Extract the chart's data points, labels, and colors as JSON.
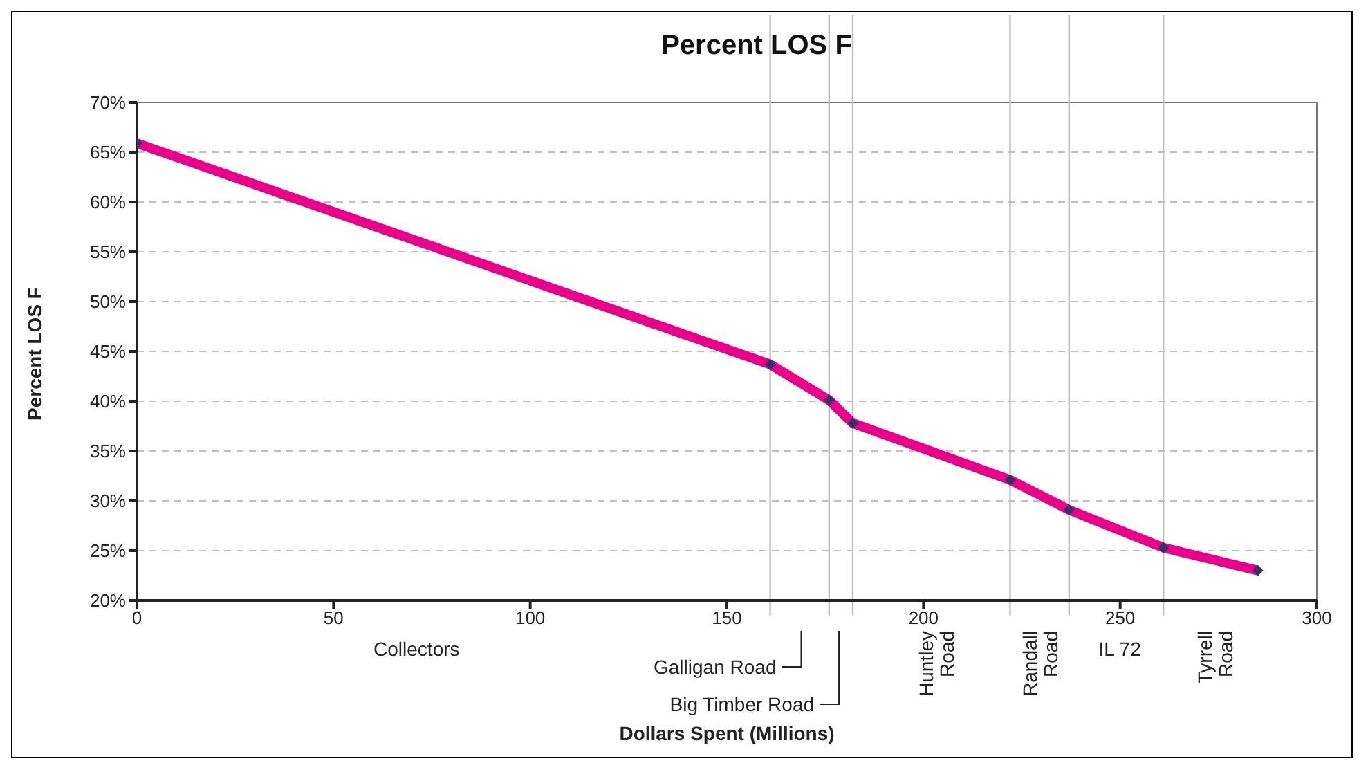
{
  "chart_data": {
    "type": "line",
    "title": "Percent LOS F",
    "xlabel": "Dollars Spent (Millions)",
    "ylabel": "Percent LOS F",
    "x": [
      0,
      161,
      176,
      182,
      222,
      237,
      261,
      285
    ],
    "series": [
      {
        "color": "#e8008a",
        "values": [
          65.9,
          43.7,
          40.1,
          37.8,
          32.1,
          29.1,
          25.3,
          23.0
        ]
      }
    ],
    "marker": "diamond",
    "line_style": "solid",
    "grid": "y",
    "xlim": [
      0,
      300
    ],
    "xticks": [
      0,
      50,
      100,
      150,
      200,
      250,
      300
    ],
    "ylim": [
      20,
      70
    ],
    "yticks": [
      {
        "value": 20,
        "label": "20%"
      },
      {
        "value": 25,
        "label": "25%"
      },
      {
        "value": 30,
        "label": "30%"
      },
      {
        "value": 35,
        "label": "35%"
      },
      {
        "value": 40,
        "label": "40%"
      },
      {
        "value": 45,
        "label": "45%"
      },
      {
        "value": 50,
        "label": "50%"
      },
      {
        "value": 55,
        "label": "55%"
      },
      {
        "value": 60,
        "label": "60%"
      },
      {
        "value": 65,
        "label": "65%"
      },
      {
        "value": 70,
        "label": "70%"
      }
    ],
    "ref_lines": [
      {
        "axis": "x",
        "value": 161,
        "color": "#bfbfbf"
      },
      {
        "axis": "x",
        "value": 176,
        "color": "#bfbfbf"
      },
      {
        "axis": "x",
        "value": 182,
        "color": "#bfbfbf"
      },
      {
        "axis": "x",
        "value": 222,
        "color": "#bfbfbf"
      },
      {
        "axis": "x",
        "value": 237,
        "color": "#bfbfbf"
      },
      {
        "axis": "x",
        "value": 261,
        "color": "#bfbfbf"
      }
    ],
    "annotations": [
      "Collectors",
      "Galligan Road",
      "Big Timber Road",
      "Huntley Road",
      "Randall Road",
      "IL 72",
      "Tyrrell Road"
    ]
  }
}
